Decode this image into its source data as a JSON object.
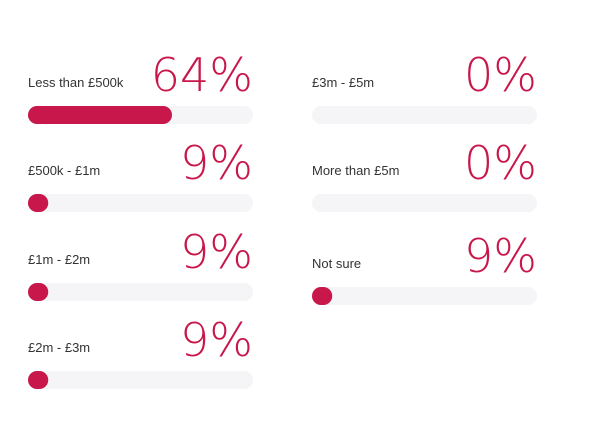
{
  "chart_data": {
    "type": "bar",
    "categories": [
      "Less than £500k",
      "£500k - £1m",
      "£1m - £2m",
      "£2m - £3m",
      "£3m - £5m",
      "More than £5m",
      "Not sure"
    ],
    "values": [
      64,
      9,
      9,
      9,
      0,
      0,
      9
    ],
    "value_labels": [
      "64%",
      "9%",
      "9%",
      "9%",
      "0%",
      "0%",
      "9%"
    ],
    "xlim": [
      0,
      100
    ],
    "color": "#c8174a"
  }
}
